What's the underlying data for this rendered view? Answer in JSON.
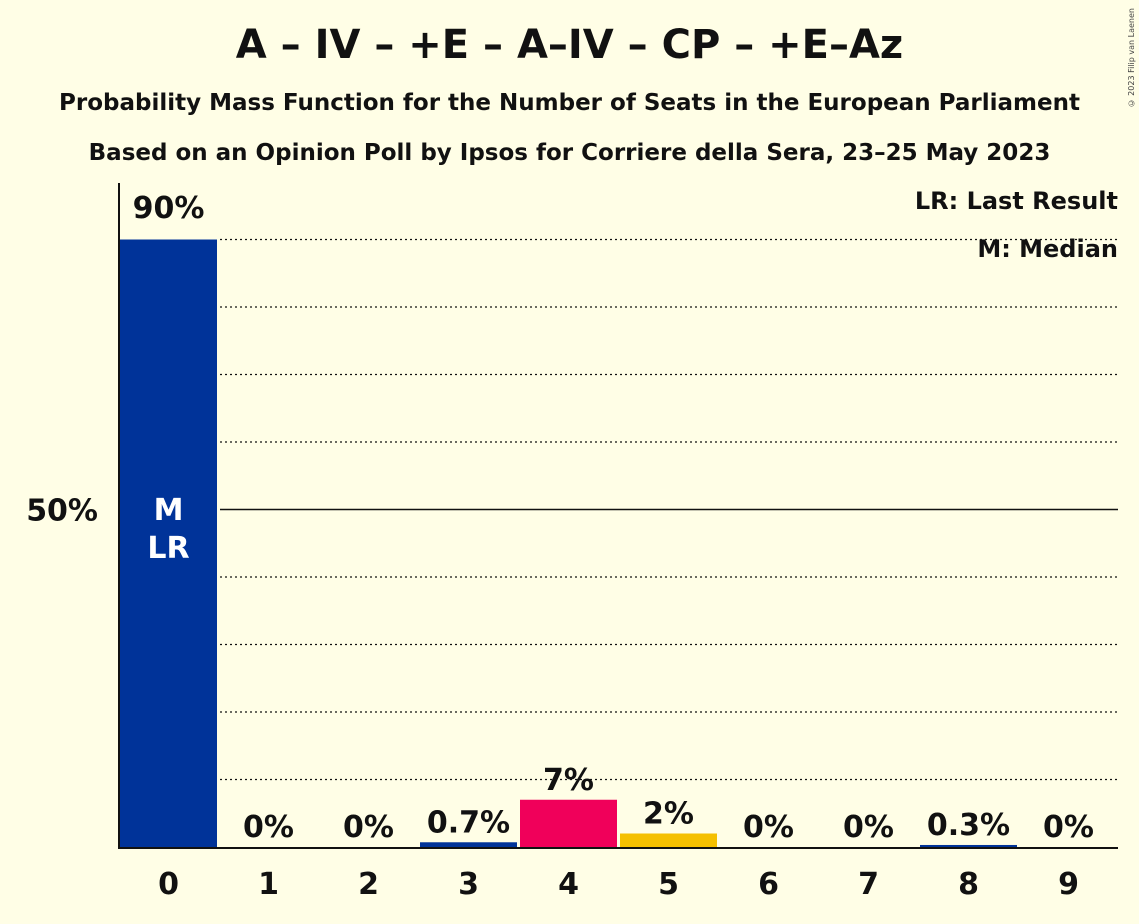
{
  "header": {
    "title": "A – IV – +E – A–IV – CP – +E–Az",
    "subtitle1": "Probability Mass Function for the Number of Seats in the European Parliament",
    "subtitle2": "Based on an Opinion Poll by Ipsos for Corriere della Sera, 23–25 May 2023",
    "copyright": "© 2023 Filip van Laenen"
  },
  "legend": {
    "last_result": "LR: Last Result",
    "median": "M: Median"
  },
  "chart_data": {
    "type": "bar",
    "categories": [
      "0",
      "1",
      "2",
      "3",
      "4",
      "5",
      "6",
      "7",
      "8",
      "9"
    ],
    "values": [
      90,
      0,
      0,
      0.7,
      7,
      2,
      0,
      0,
      0.3,
      0
    ],
    "value_labels": [
      "90%",
      "0%",
      "0%",
      "0.7%",
      "7%",
      "2%",
      "0%",
      "0%",
      "0.3%",
      "0%"
    ],
    "bar_colors": [
      "#003399",
      "#003399",
      "#003399",
      "#003399",
      "#F0005A",
      "#F5C000",
      "#003399",
      "#003399",
      "#003399",
      "#003399"
    ],
    "ylim": [
      0,
      100
    ],
    "y_tick_label": "50%",
    "y_tick_value": 50,
    "grid_values": [
      10,
      20,
      30,
      40,
      60,
      70,
      80,
      90
    ],
    "median_index": 0,
    "last_result_index": 0,
    "median_marker": "M",
    "last_result_marker": "LR"
  }
}
